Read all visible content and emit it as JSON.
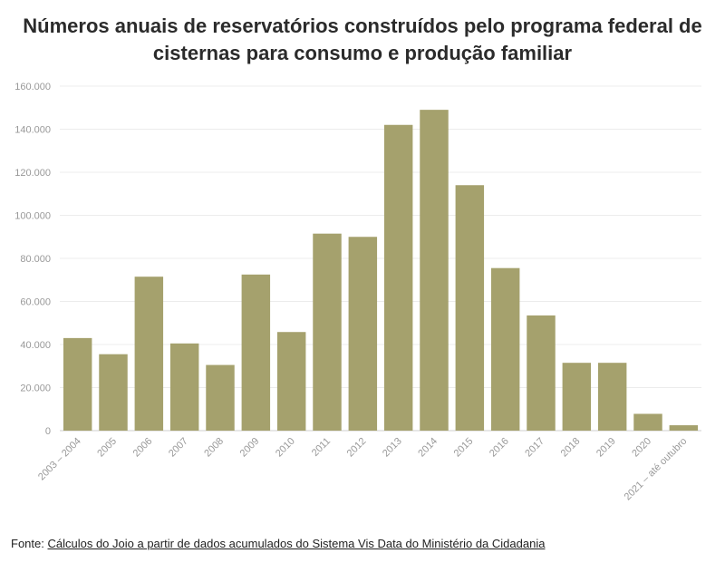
{
  "chart_data": {
    "type": "bar",
    "title": "Números anuais de reservatórios construídos pelo programa federal de cisternas para consumo e produção familiar",
    "categories": [
      "2003 – 2004",
      "2005",
      "2006",
      "2007",
      "2008",
      "2009",
      "2010",
      "2011",
      "2012",
      "2013",
      "2014",
      "2015",
      "2016",
      "2017",
      "2018",
      "2019",
      "2020",
      "2021 – até outubro"
    ],
    "values": [
      43000,
      35500,
      71500,
      40500,
      30500,
      72500,
      45800,
      91500,
      90000,
      142000,
      149000,
      114000,
      75500,
      53500,
      31500,
      31500,
      7800,
      2500
    ],
    "ylim": [
      0,
      160000
    ],
    "yticks": [
      "0",
      "20.000",
      "40.000",
      "60.000",
      "80.000",
      "100.000",
      "120.000",
      "140.000",
      "160.000"
    ],
    "bar_color": "#a5a16d",
    "grid": true
  },
  "source": {
    "prefix": "Fonte:",
    "link_text": "Cálculos do Joio a partir de dados acumulados do Sistema Vis Data do Ministério da Cidadania"
  }
}
